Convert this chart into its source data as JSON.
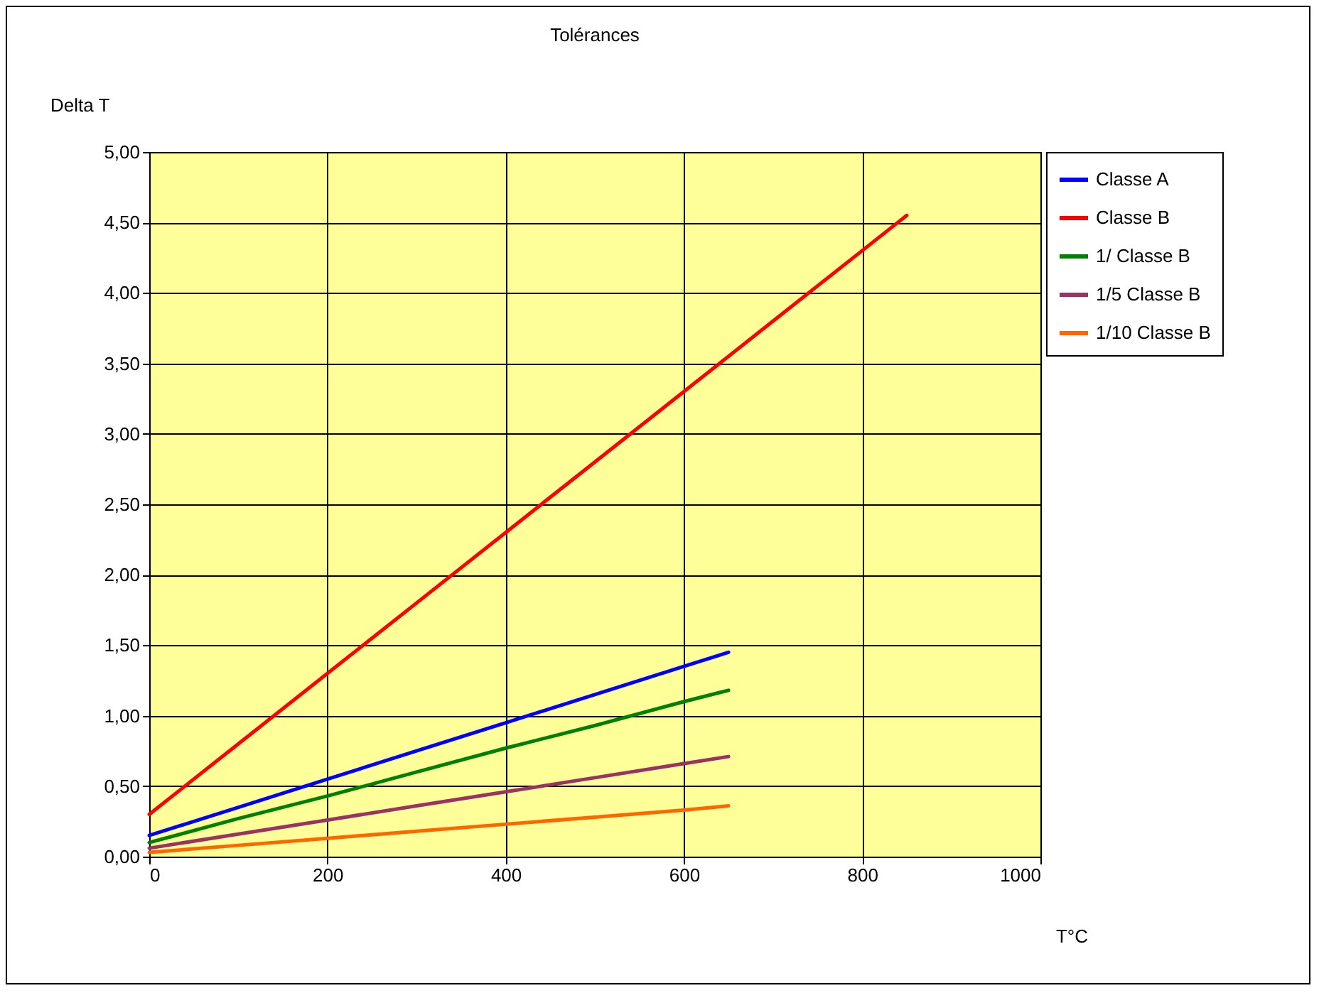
{
  "chart_data": {
    "type": "line",
    "title": "Tolérances",
    "xlabel": "T°C",
    "ylabel": "Delta T",
    "xlim": [
      0,
      1000
    ],
    "xticks": [
      0,
      200,
      400,
      600,
      800,
      1000
    ],
    "ylim": [
      0,
      5
    ],
    "yticks": [
      {
        "value": 0,
        "label": "0,00"
      },
      {
        "value": 0.5,
        "label": "0,50"
      },
      {
        "value": 1,
        "label": "1,00"
      },
      {
        "value": 1.5,
        "label": "1,50"
      },
      {
        "value": 2,
        "label": "2,00"
      },
      {
        "value": 2.5,
        "label": "2,50"
      },
      {
        "value": 3,
        "label": "3,00"
      },
      {
        "value": 3.5,
        "label": "3,50"
      },
      {
        "value": 4,
        "label": "4,00"
      },
      {
        "value": 4.5,
        "label": "4,50"
      },
      {
        "value": 5,
        "label": "5,00"
      }
    ],
    "grid": true,
    "legend": "right",
    "marker": "none",
    "line_style": "solid",
    "series": [
      {
        "name": "Classe A",
        "color": "#0000ff",
        "x": [
          0,
          100,
          200,
          300,
          400,
          500,
          600,
          650
        ],
        "values": [
          0.15,
          0.35,
          0.55,
          0.75,
          0.95,
          1.15,
          1.35,
          1.45
        ]
      },
      {
        "name": "Classe B",
        "color": "#ff0000",
        "x": [
          0,
          100,
          200,
          300,
          400,
          500,
          600,
          700,
          800,
          850
        ],
        "values": [
          0.3,
          0.8,
          1.3,
          1.8,
          2.3,
          2.8,
          3.3,
          3.8,
          4.3,
          4.55
        ]
      },
      {
        "name": "1/ Classe B",
        "color": "#008000",
        "x": [
          0,
          100,
          200,
          300,
          400,
          500,
          600,
          650
        ],
        "values": [
          0.1,
          0.27,
          0.43,
          0.6,
          0.77,
          0.93,
          1.1,
          1.18
        ]
      },
      {
        "name": "1/5 Classe B",
        "color": "#993366",
        "x": [
          0,
          100,
          200,
          300,
          400,
          500,
          600,
          650
        ],
        "values": [
          0.06,
          0.16,
          0.26,
          0.36,
          0.46,
          0.56,
          0.66,
          0.71
        ]
      },
      {
        "name": "1/10 Classe B",
        "color": "#ff6600",
        "x": [
          0,
          100,
          200,
          300,
          400,
          500,
          600,
          650
        ],
        "values": [
          0.03,
          0.08,
          0.13,
          0.18,
          0.23,
          0.28,
          0.33,
          0.36
        ]
      }
    ]
  }
}
